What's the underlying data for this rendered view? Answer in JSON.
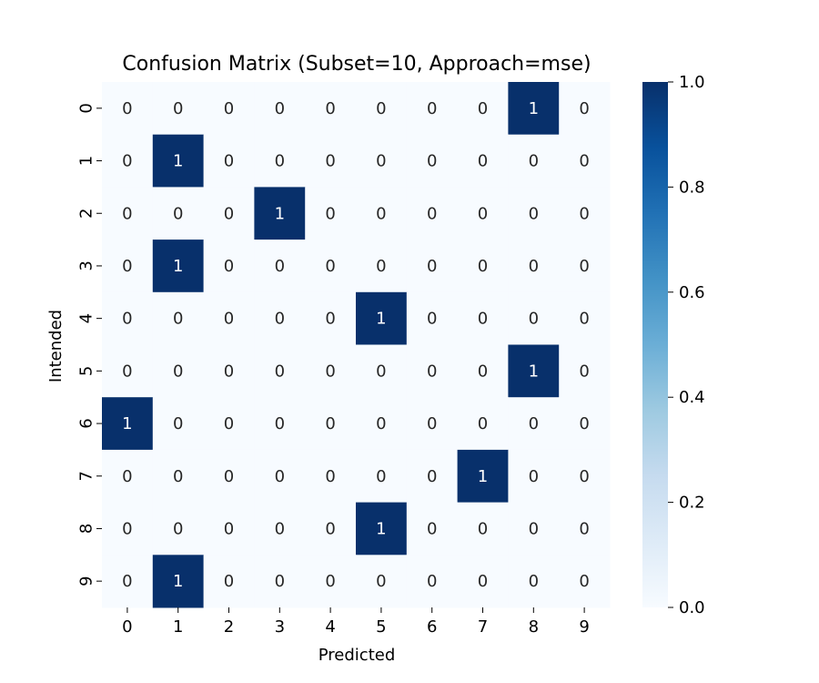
{
  "chart_data": {
    "type": "heatmap",
    "title": "Confusion Matrix (Subset=10, Approach=mse)",
    "xlabel": "Predicted",
    "ylabel": "Intended",
    "x_categories": [
      "0",
      "1",
      "2",
      "3",
      "4",
      "5",
      "6",
      "7",
      "8",
      "9"
    ],
    "y_categories": [
      "0",
      "1",
      "2",
      "3",
      "4",
      "5",
      "6",
      "7",
      "8",
      "9"
    ],
    "values": [
      [
        0,
        0,
        0,
        0,
        0,
        0,
        0,
        0,
        1,
        0
      ],
      [
        0,
        1,
        0,
        0,
        0,
        0,
        0,
        0,
        0,
        0
      ],
      [
        0,
        0,
        0,
        1,
        0,
        0,
        0,
        0,
        0,
        0
      ],
      [
        0,
        1,
        0,
        0,
        0,
        0,
        0,
        0,
        0,
        0
      ],
      [
        0,
        0,
        0,
        0,
        0,
        1,
        0,
        0,
        0,
        0
      ],
      [
        0,
        0,
        0,
        0,
        0,
        0,
        0,
        0,
        1,
        0
      ],
      [
        1,
        0,
        0,
        0,
        0,
        0,
        0,
        0,
        0,
        0
      ],
      [
        0,
        0,
        0,
        0,
        0,
        0,
        0,
        1,
        0,
        0
      ],
      [
        0,
        0,
        0,
        0,
        0,
        1,
        0,
        0,
        0,
        0
      ],
      [
        0,
        1,
        0,
        0,
        0,
        0,
        0,
        0,
        0,
        0
      ]
    ],
    "colorbar": {
      "range": [
        0.0,
        1.0
      ],
      "ticks": [
        "0.0",
        "0.2",
        "0.4",
        "0.6",
        "0.8",
        "1.0"
      ],
      "colormap": "Blues",
      "low_color": "#f7fbff",
      "high_color": "#08306b"
    }
  }
}
